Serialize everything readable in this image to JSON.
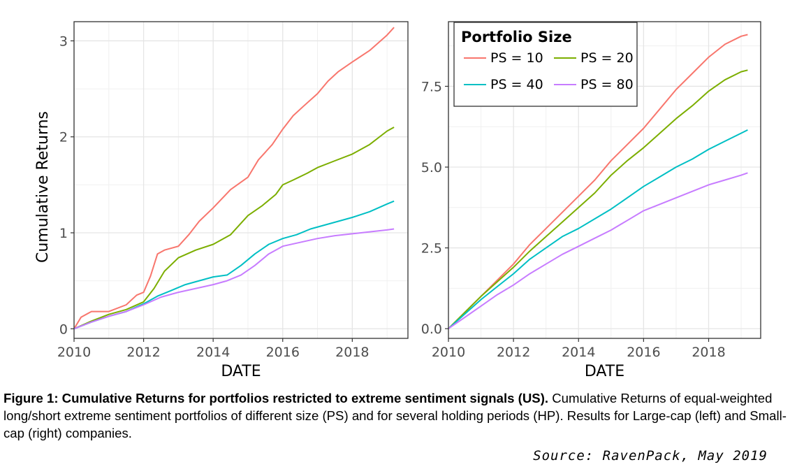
{
  "chart_data": [
    {
      "type": "line",
      "panel": "Large-cap",
      "xlabel": "DATE",
      "ylabel": "Cumulative Returns",
      "xlim": [
        2010,
        2019.6
      ],
      "ylim": [
        -0.1,
        3.2
      ],
      "xticks": [
        2010,
        2012,
        2014,
        2016,
        2018
      ],
      "xtick_labels": [
        "2010",
        "2012",
        "2014",
        "2016",
        "2018"
      ],
      "yticks": [
        0,
        1,
        2,
        3
      ],
      "ytick_labels": [
        "0",
        "1",
        "2",
        "3"
      ],
      "grid": true,
      "series": [
        {
          "name": "PS = 10",
          "color": "#F8766D",
          "x": [
            2010.0,
            2010.2,
            2010.5,
            2011.0,
            2011.5,
            2011.8,
            2012.0,
            2012.2,
            2012.4,
            2012.6,
            2013.0,
            2013.3,
            2013.6,
            2014.0,
            2014.5,
            2015.0,
            2015.3,
            2015.7,
            2016.0,
            2016.3,
            2016.6,
            2017.0,
            2017.3,
            2017.6,
            2018.0,
            2018.5,
            2019.0,
            2019.2
          ],
          "y": [
            0.0,
            0.12,
            0.18,
            0.18,
            0.25,
            0.35,
            0.38,
            0.55,
            0.78,
            0.82,
            0.86,
            0.98,
            1.12,
            1.26,
            1.45,
            1.58,
            1.76,
            1.92,
            2.08,
            2.22,
            2.32,
            2.45,
            2.58,
            2.68,
            2.78,
            2.9,
            3.06,
            3.14
          ]
        },
        {
          "name": "PS = 20",
          "color": "#7CAE00",
          "x": [
            2010.0,
            2010.5,
            2011.0,
            2011.5,
            2012.0,
            2012.3,
            2012.6,
            2013.0,
            2013.5,
            2014.0,
            2014.5,
            2015.0,
            2015.4,
            2015.8,
            2016.0,
            2016.3,
            2016.7,
            2017.0,
            2017.5,
            2018.0,
            2018.5,
            2019.0,
            2019.2
          ],
          "y": [
            0.0,
            0.08,
            0.15,
            0.2,
            0.28,
            0.42,
            0.6,
            0.74,
            0.82,
            0.88,
            0.98,
            1.18,
            1.28,
            1.4,
            1.5,
            1.55,
            1.62,
            1.68,
            1.75,
            1.82,
            1.92,
            2.06,
            2.1
          ]
        },
        {
          "name": "PS = 40",
          "color": "#00BFC4",
          "x": [
            2010.0,
            2010.5,
            2011.0,
            2011.5,
            2012.0,
            2012.4,
            2012.8,
            2013.2,
            2013.6,
            2014.0,
            2014.4,
            2014.8,
            2015.2,
            2015.6,
            2016.0,
            2016.4,
            2016.8,
            2017.2,
            2017.6,
            2018.0,
            2018.5,
            2019.0,
            2019.2
          ],
          "y": [
            0.0,
            0.07,
            0.13,
            0.18,
            0.26,
            0.34,
            0.4,
            0.46,
            0.5,
            0.54,
            0.56,
            0.66,
            0.78,
            0.88,
            0.94,
            0.98,
            1.04,
            1.08,
            1.12,
            1.16,
            1.22,
            1.3,
            1.33
          ]
        },
        {
          "name": "PS = 80",
          "color": "#C77CFF",
          "x": [
            2010.0,
            2010.5,
            2011.0,
            2011.5,
            2012.0,
            2012.5,
            2013.0,
            2013.5,
            2014.0,
            2014.4,
            2014.8,
            2015.2,
            2015.6,
            2016.0,
            2016.5,
            2017.0,
            2017.5,
            2018.0,
            2018.5,
            2019.0,
            2019.2
          ],
          "y": [
            0.0,
            0.07,
            0.13,
            0.18,
            0.25,
            0.33,
            0.38,
            0.42,
            0.46,
            0.5,
            0.56,
            0.66,
            0.78,
            0.86,
            0.9,
            0.94,
            0.97,
            0.99,
            1.01,
            1.03,
            1.04
          ]
        }
      ]
    },
    {
      "type": "line",
      "panel": "Small-cap",
      "xlabel": "DATE",
      "ylabel": "",
      "xlim": [
        2010,
        2019.6
      ],
      "ylim": [
        -0.3,
        9.5
      ],
      "xticks": [
        2010,
        2012,
        2014,
        2016,
        2018
      ],
      "xtick_labels": [
        "2010",
        "2012",
        "2014",
        "2016",
        "2018"
      ],
      "yticks": [
        0,
        2.5,
        5,
        7.5
      ],
      "ytick_labels": [
        "0.0",
        "2.5",
        "5.0",
        "7.5"
      ],
      "grid": true,
      "legend": {
        "title": "Portfolio Size",
        "position": "top-left",
        "columns": 2
      },
      "series": [
        {
          "name": "PS = 10",
          "color": "#F8766D",
          "x": [
            2010.0,
            2010.5,
            2011.0,
            2011.5,
            2012.0,
            2012.5,
            2013.0,
            2013.5,
            2014.0,
            2014.5,
            2015.0,
            2015.5,
            2016.0,
            2016.5,
            2017.0,
            2017.5,
            2018.0,
            2018.5,
            2019.0,
            2019.2
          ],
          "y": [
            0.0,
            0.5,
            1.0,
            1.5,
            2.0,
            2.6,
            3.1,
            3.6,
            4.1,
            4.6,
            5.2,
            5.7,
            6.2,
            6.8,
            7.4,
            7.9,
            8.4,
            8.8,
            9.05,
            9.1
          ]
        },
        {
          "name": "PS = 20",
          "color": "#7CAE00",
          "x": [
            2010.0,
            2010.5,
            2011.0,
            2011.5,
            2012.0,
            2012.5,
            2013.0,
            2013.5,
            2014.0,
            2014.5,
            2015.0,
            2015.5,
            2016.0,
            2016.5,
            2017.0,
            2017.5,
            2018.0,
            2018.5,
            2019.0,
            2019.2
          ],
          "y": [
            0.0,
            0.5,
            1.0,
            1.45,
            1.9,
            2.4,
            2.85,
            3.3,
            3.75,
            4.2,
            4.75,
            5.2,
            5.6,
            6.05,
            6.5,
            6.9,
            7.35,
            7.7,
            7.95,
            8.0
          ]
        },
        {
          "name": "PS = 40",
          "color": "#00BFC4",
          "x": [
            2010.0,
            2010.5,
            2011.0,
            2011.5,
            2012.0,
            2012.5,
            2013.0,
            2013.5,
            2014.0,
            2014.5,
            2015.0,
            2015.5,
            2016.0,
            2016.5,
            2017.0,
            2017.5,
            2018.0,
            2018.5,
            2019.0,
            2019.2
          ],
          "y": [
            0.0,
            0.45,
            0.9,
            1.3,
            1.7,
            2.15,
            2.5,
            2.85,
            3.1,
            3.4,
            3.7,
            4.05,
            4.4,
            4.7,
            5.0,
            5.25,
            5.55,
            5.8,
            6.05,
            6.15
          ]
        },
        {
          "name": "PS = 80",
          "color": "#C77CFF",
          "x": [
            2010.0,
            2010.5,
            2011.0,
            2011.5,
            2012.0,
            2012.5,
            2013.0,
            2013.5,
            2014.0,
            2014.5,
            2015.0,
            2015.5,
            2016.0,
            2016.5,
            2017.0,
            2017.5,
            2018.0,
            2018.5,
            2019.0,
            2019.2
          ],
          "y": [
            0.0,
            0.35,
            0.7,
            1.05,
            1.35,
            1.7,
            2.0,
            2.3,
            2.55,
            2.8,
            3.05,
            3.35,
            3.65,
            3.85,
            4.05,
            4.25,
            4.45,
            4.6,
            4.75,
            4.82
          ]
        }
      ]
    }
  ],
  "caption": {
    "bold": "Figure 1: Cumulative Returns for portfolios restricted to extreme sentiment signals (US).",
    "text": " Cumulative Returns of equal-weighted long/short extreme sentiment portfolios of different size (PS) and for several holding periods (HP). Results for Large-cap (left) and Small-cap (right) companies."
  },
  "source": "Source: RavenPack, May 2019"
}
